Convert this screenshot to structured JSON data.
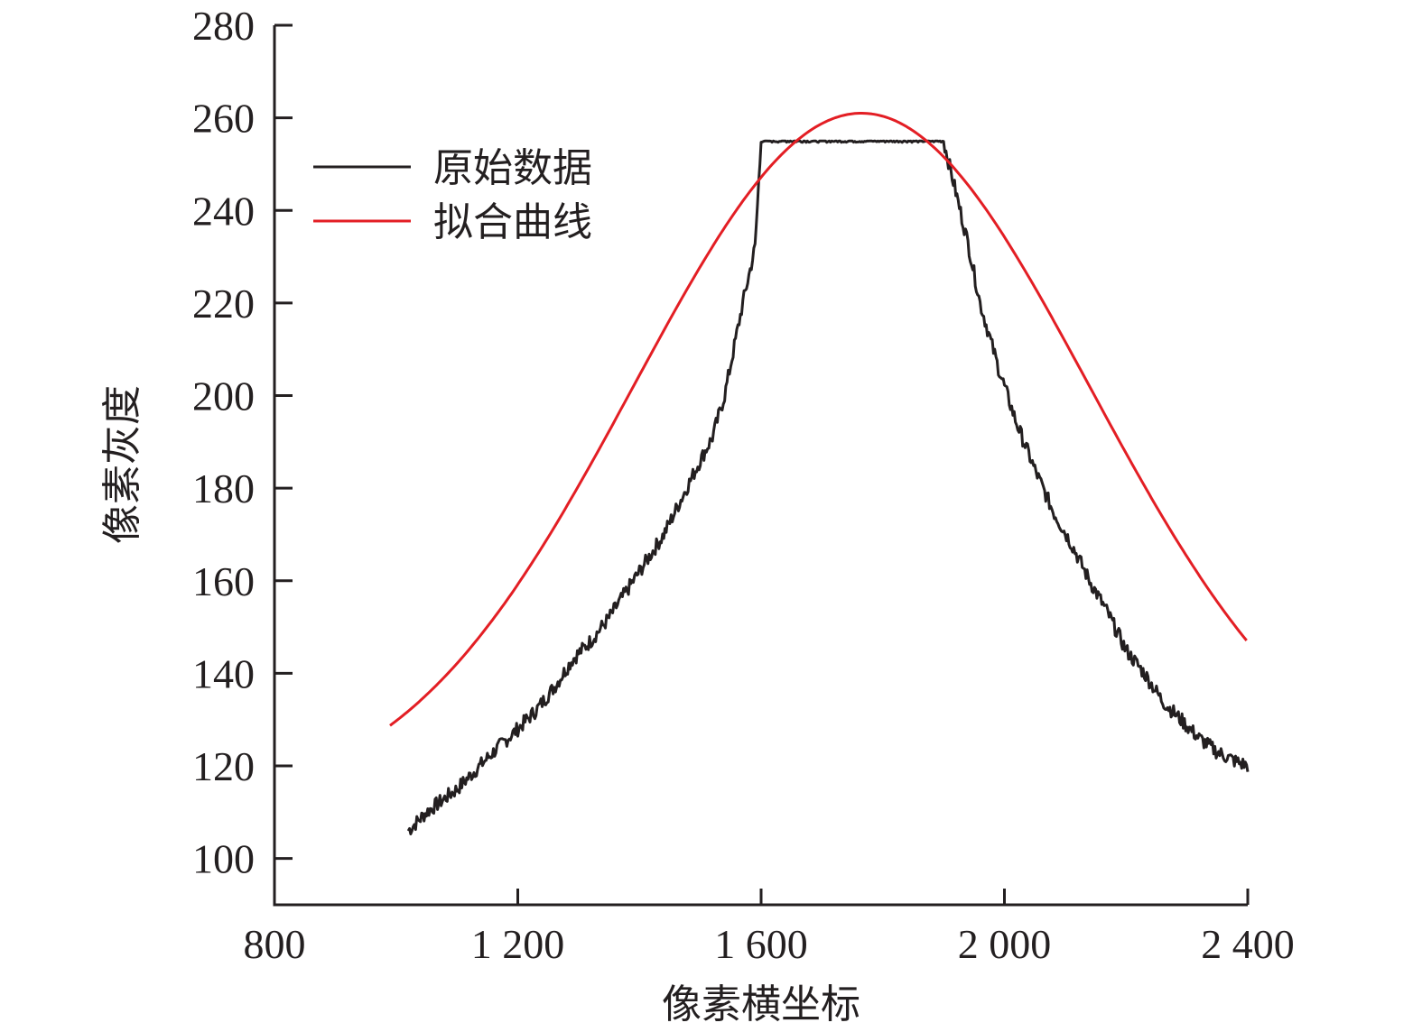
{
  "chart_data": {
    "type": "line",
    "xlabel": "像素横坐标",
    "ylabel": "像素灰度",
    "xlim": [
      800,
      2400
    ],
    "ylim": [
      90,
      280
    ],
    "x_ticks": [
      800,
      1200,
      1600,
      2000,
      2400
    ],
    "x_tick_labels": [
      "800",
      "1 200",
      "1 600",
      "2 000",
      "2 400"
    ],
    "y_ticks": [
      100,
      120,
      140,
      160,
      180,
      200,
      220,
      240,
      260,
      280
    ],
    "y_tick_labels": [
      "100",
      "120",
      "140",
      "160",
      "180",
      "200",
      "220",
      "240",
      "260",
      "280"
    ],
    "grid": false,
    "legend_position": "top-left",
    "series": [
      {
        "name": "原始数据",
        "color": "#231f20",
        "x": [
          1020,
          1050,
          1080,
          1100,
          1130,
          1160,
          1200,
          1230,
          1260,
          1290,
          1320,
          1350,
          1380,
          1410,
          1440,
          1470,
          1500,
          1520,
          1540,
          1570,
          1590,
          1600,
          1750,
          1900,
          1920,
          1940,
          1960,
          1990,
          2020,
          2050,
          2080,
          2110,
          2140,
          2170,
          2200,
          2230,
          2260,
          2290,
          2320,
          2350,
          2380,
          2400
        ],
        "y": [
          106,
          110,
          113,
          115,
          119,
          123,
          128,
          132,
          137,
          143,
          147,
          152,
          158,
          164,
          170,
          178,
          186,
          191,
          200,
          220,
          232,
          255,
          255,
          255,
          244,
          233,
          220,
          206,
          194,
          184,
          175,
          168,
          160,
          153,
          145,
          140,
          134,
          130,
          126,
          123,
          121,
          120
        ]
      },
      {
        "name": "拟合曲线",
        "color": "#e31e24",
        "model": {
          "type": "gaussian",
          "amplitude": 150,
          "center": 1765,
          "sigma": 375,
          "offset": 111
        },
        "x_range": [
          990,
          2400
        ]
      }
    ]
  }
}
